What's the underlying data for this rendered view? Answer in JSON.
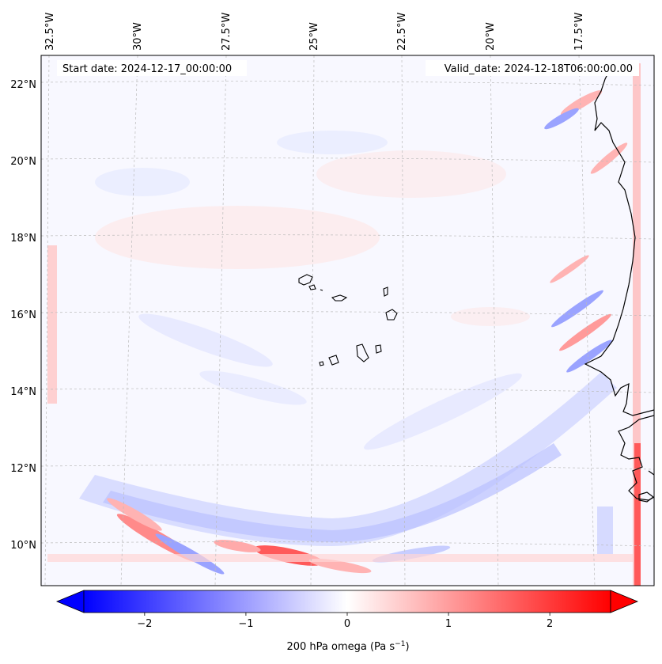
{
  "map": {
    "start_date": "Start date: 2024-12-17_00:00:00",
    "valid_date": "Valid_date: 2024-12-18T06:00:00.00",
    "lon_labels": [
      "32.5°W",
      "30°W",
      "27.5°W",
      "25°W",
      "22.5°W",
      "20°W",
      "17.5°W"
    ],
    "lat_labels": [
      "22°N",
      "20°N",
      "18°N",
      "16°N",
      "14°N",
      "12°N",
      "10°N"
    ]
  },
  "colorbar": {
    "label_main": "200 hPa omega (Pa s",
    "label_exp": "−1",
    "label_end": ")",
    "ticks": [
      "−2",
      "−1",
      "0",
      "1",
      "2"
    ],
    "tick_values": [
      -2,
      -1,
      0,
      1,
      2
    ],
    "vmin": -2.6,
    "vmax": 2.6,
    "colormap": "bwr"
  },
  "colors": {
    "blue": "#0000ff",
    "white": "#ffffff",
    "red": "#ff0000",
    "coast": "#000000",
    "grid": "#bbbbbb"
  }
}
